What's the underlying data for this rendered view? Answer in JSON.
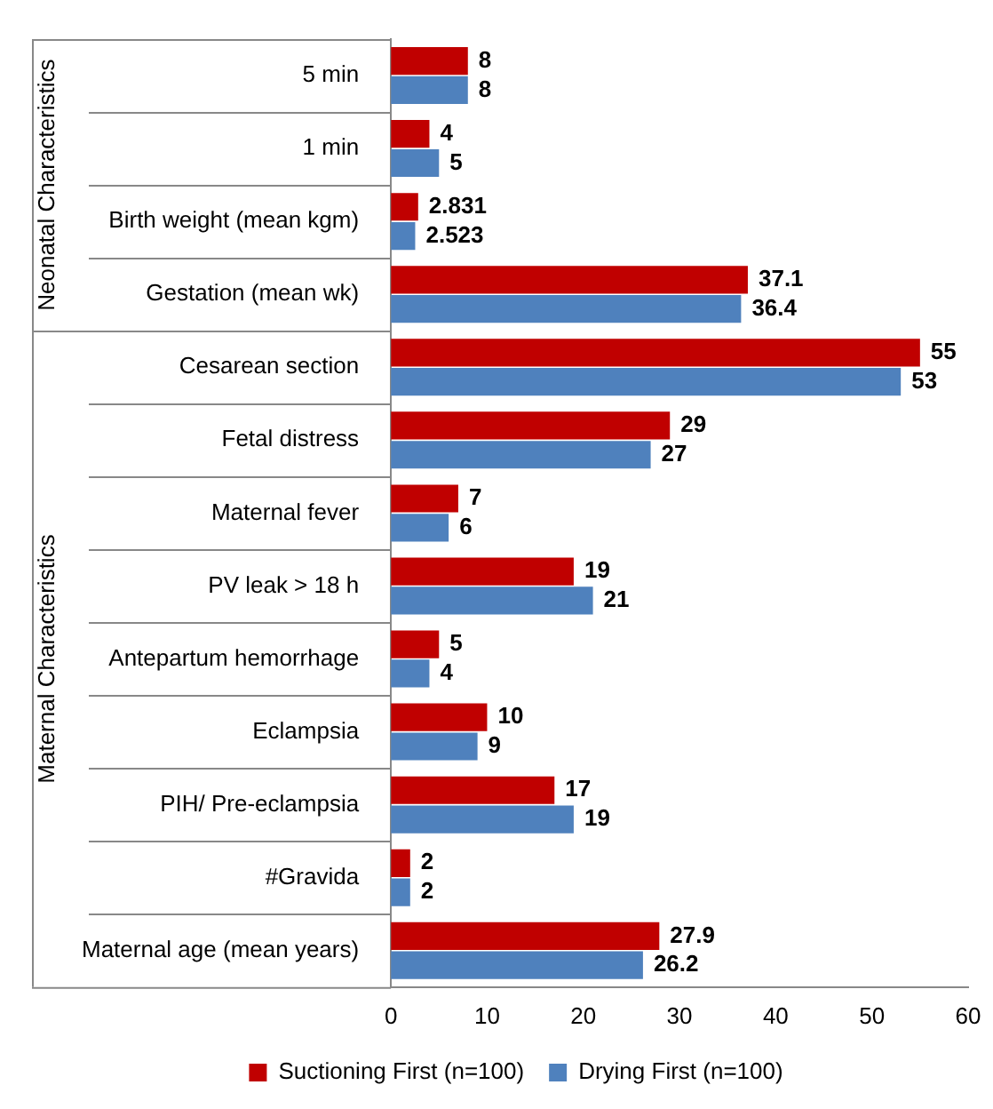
{
  "chart_data": {
    "type": "bar",
    "orientation": "horizontal",
    "categories": [
      "5 min",
      "1 min",
      "Birth weight (mean kgm)",
      "Gestation (mean wk)",
      "Cesarean section",
      "Fetal distress",
      "Maternal fever",
      "PV leak > 18 h",
      "Antepartum hemorrhage",
      "Eclampsia",
      "PIH/ Pre-eclampsia",
      "#Gravida",
      "Maternal age (mean years)"
    ],
    "series": [
      {
        "name": "Suctioning First (n=100)",
        "color": "#c00000",
        "values": [
          8,
          4,
          2.831,
          37.1,
          55,
          29,
          7,
          19,
          5,
          10,
          17,
          2,
          27.9
        ]
      },
      {
        "name": "Drying First (n=100)",
        "color": "#4f81bd",
        "values": [
          8,
          5,
          2.523,
          36.4,
          53,
          27,
          6,
          21,
          4,
          9,
          19,
          2,
          26.2
        ]
      }
    ],
    "xlim": [
      0,
      60
    ],
    "xticks": [
      0,
      10,
      20,
      30,
      40,
      50,
      60
    ],
    "annotations": [
      "Neonatal Characteristics",
      "Maternal Characteristics"
    ],
    "data_labels": true,
    "grid": false,
    "legend": "bottom"
  }
}
